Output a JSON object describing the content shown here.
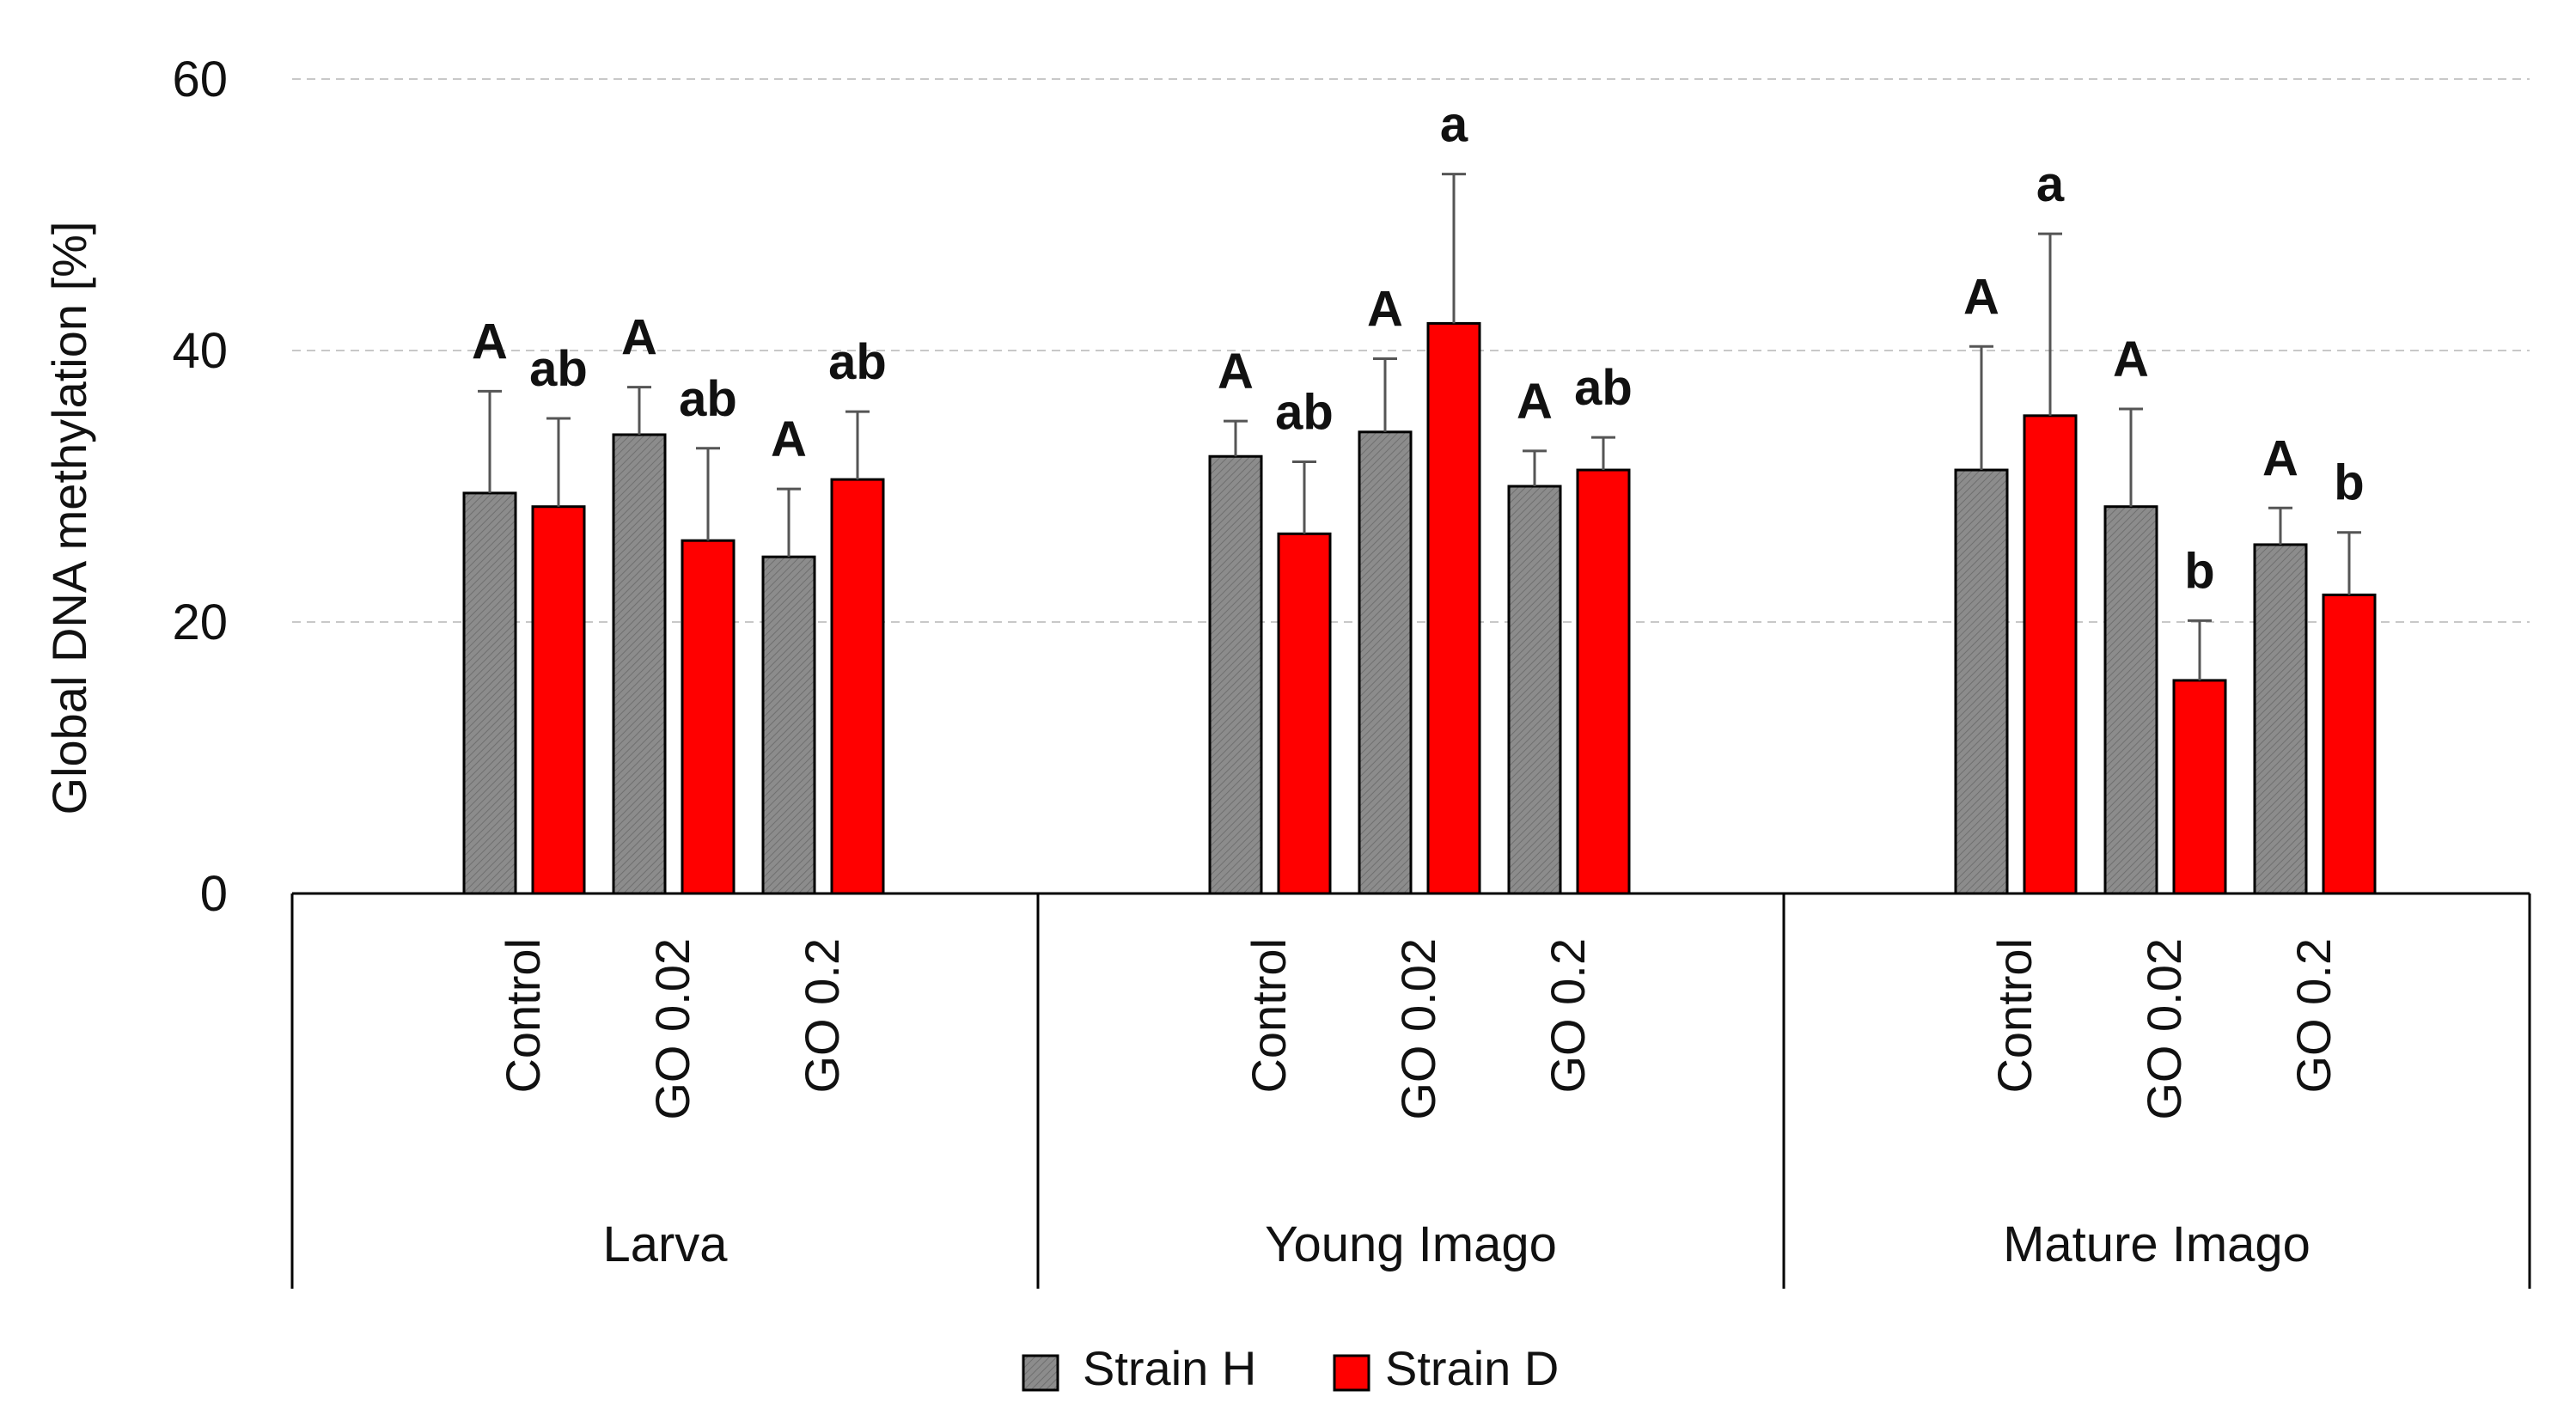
{
  "chart_data": {
    "type": "bar",
    "title": "",
    "ylabel": "Global DNA methylation   [%]",
    "xlabel": "",
    "ylim": [
      0,
      60
    ],
    "yticks": [
      0,
      20,
      40,
      60
    ],
    "grid": true,
    "legend_position": "bottom-center",
    "groups": [
      {
        "name": "Larva",
        "categories": [
          "Control",
          "GO 0.02",
          "GO 0.2"
        ],
        "strainH": [
          29.5,
          33.8,
          24.8
        ],
        "strainH_err": [
          7.5,
          3.5,
          5.0
        ],
        "strainH_sig": [
          "A",
          "A",
          "A"
        ],
        "strainD": [
          28.5,
          26.0,
          30.5
        ],
        "strainD_err": [
          6.5,
          6.8,
          5.0
        ],
        "strainD_sig": [
          "ab",
          "ab",
          "ab"
        ]
      },
      {
        "name": "Young Imago",
        "categories": [
          "Control",
          "GO 0.02",
          "GO 0.2"
        ],
        "strainH": [
          32.2,
          34.0,
          30.0
        ],
        "strainH_err": [
          2.6,
          5.4,
          2.6
        ],
        "strainH_sig": [
          "A",
          "A",
          "A"
        ],
        "strainD": [
          26.5,
          42.0,
          31.2
        ],
        "strainD_err": [
          5.3,
          11.0,
          2.4
        ],
        "strainD_sig": [
          "ab",
          "a",
          "ab"
        ]
      },
      {
        "name": "Mature Imago",
        "categories": [
          "Control",
          "GO 0.02",
          "GO 0.2"
        ],
        "strainH": [
          31.2,
          28.5,
          25.7
        ],
        "strainH_err": [
          9.1,
          7.2,
          2.7
        ],
        "strainH_sig": [
          "A",
          "A",
          "A"
        ],
        "strainD": [
          35.2,
          15.7,
          22.0
        ],
        "strainD_err": [
          13.4,
          4.4,
          4.6
        ],
        "strainD_sig": [
          "a",
          "b",
          "b"
        ]
      }
    ],
    "series": [
      {
        "name": "Strain H",
        "color": "#8c8c8c"
      },
      {
        "name": "Strain D",
        "color": "#ff0000"
      }
    ]
  }
}
